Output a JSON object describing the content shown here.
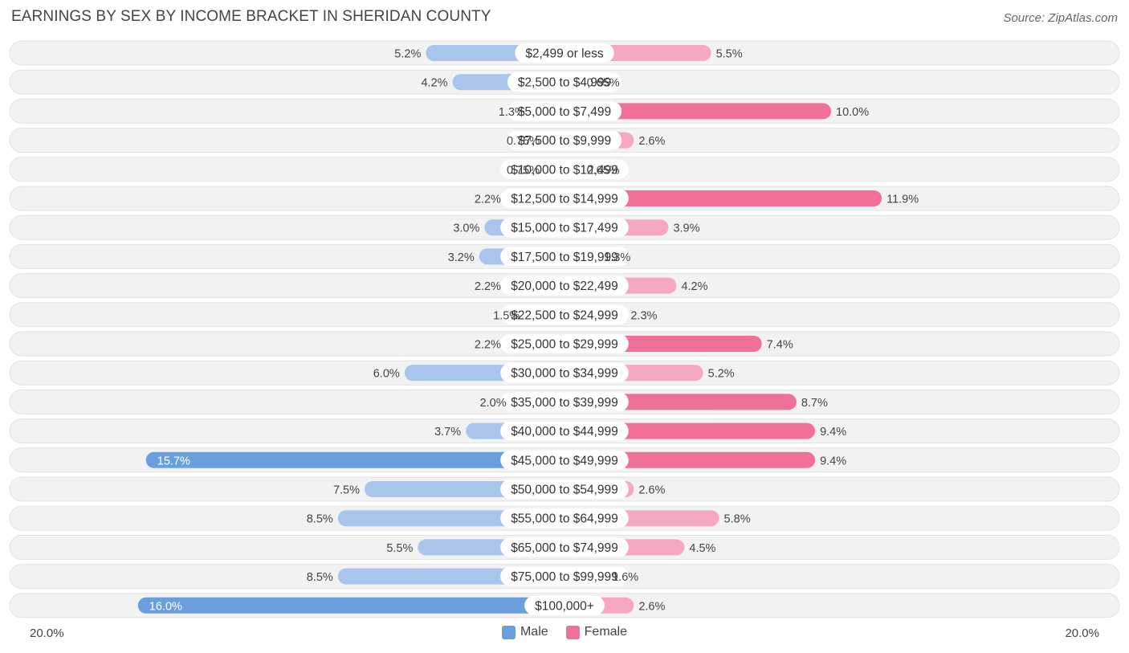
{
  "header": {
    "title": "EARNINGS BY SEX BY INCOME BRACKET IN SHERIDAN COUNTY",
    "source": "Source: ZipAtlas.com"
  },
  "colors": {
    "male": "#6a9fde",
    "male_light": "#a8c6ec",
    "female": "#f07098",
    "female_light": "#f6a8c0",
    "row_bg": "#f2f2f2"
  },
  "chart_data": {
    "type": "bar",
    "orientation": "horizontal-diverging",
    "title": "EARNINGS BY SEX BY INCOME BRACKET IN SHERIDAN COUNTY",
    "categories": [
      "$2,499 or less",
      "$2,500 to $4,999",
      "$5,000 to $7,499",
      "$7,500 to $9,999",
      "$10,000 to $12,499",
      "$12,500 to $14,999",
      "$15,000 to $17,499",
      "$17,500 to $19,999",
      "$20,000 to $22,499",
      "$22,500 to $24,999",
      "$25,000 to $29,999",
      "$30,000 to $34,999",
      "$35,000 to $39,999",
      "$40,000 to $44,999",
      "$45,000 to $49,999",
      "$50,000 to $54,999",
      "$55,000 to $64,999",
      "$65,000 to $74,999",
      "$75,000 to $99,999",
      "$100,000+"
    ],
    "series": [
      {
        "name": "Male",
        "values": [
          5.2,
          4.2,
          1.3,
          0.75,
          0.75,
          2.2,
          3.0,
          3.2,
          2.2,
          1.5,
          2.2,
          6.0,
          2.0,
          3.7,
          15.7,
          7.5,
          8.5,
          5.5,
          8.5,
          16.0
        ],
        "labels": [
          "5.2%",
          "4.2%",
          "1.3%",
          "0.75%",
          "0.75%",
          "2.2%",
          "3.0%",
          "3.2%",
          "2.2%",
          "1.5%",
          "2.2%",
          "6.0%",
          "2.0%",
          "3.7%",
          "15.7%",
          "7.5%",
          "8.5%",
          "5.5%",
          "8.5%",
          "16.0%"
        ]
      },
      {
        "name": "Female",
        "values": [
          5.5,
          0.65,
          10.0,
          2.6,
          0.65,
          11.9,
          3.9,
          1.3,
          4.2,
          2.3,
          7.4,
          5.2,
          8.7,
          9.4,
          9.4,
          2.6,
          5.8,
          4.5,
          1.6,
          2.6
        ],
        "labels": [
          "5.5%",
          "0.65%",
          "10.0%",
          "2.6%",
          "0.65%",
          "11.9%",
          "3.9%",
          "1.3%",
          "4.2%",
          "2.3%",
          "7.4%",
          "5.2%",
          "8.7%",
          "9.4%",
          "9.4%",
          "2.6%",
          "5.8%",
          "4.5%",
          "1.6%",
          "2.6%"
        ]
      }
    ],
    "xlim": [
      -20,
      20
    ],
    "axis_min_label": "20.0%",
    "axis_max_label": "20.0%",
    "legend": [
      "Male",
      "Female"
    ]
  }
}
